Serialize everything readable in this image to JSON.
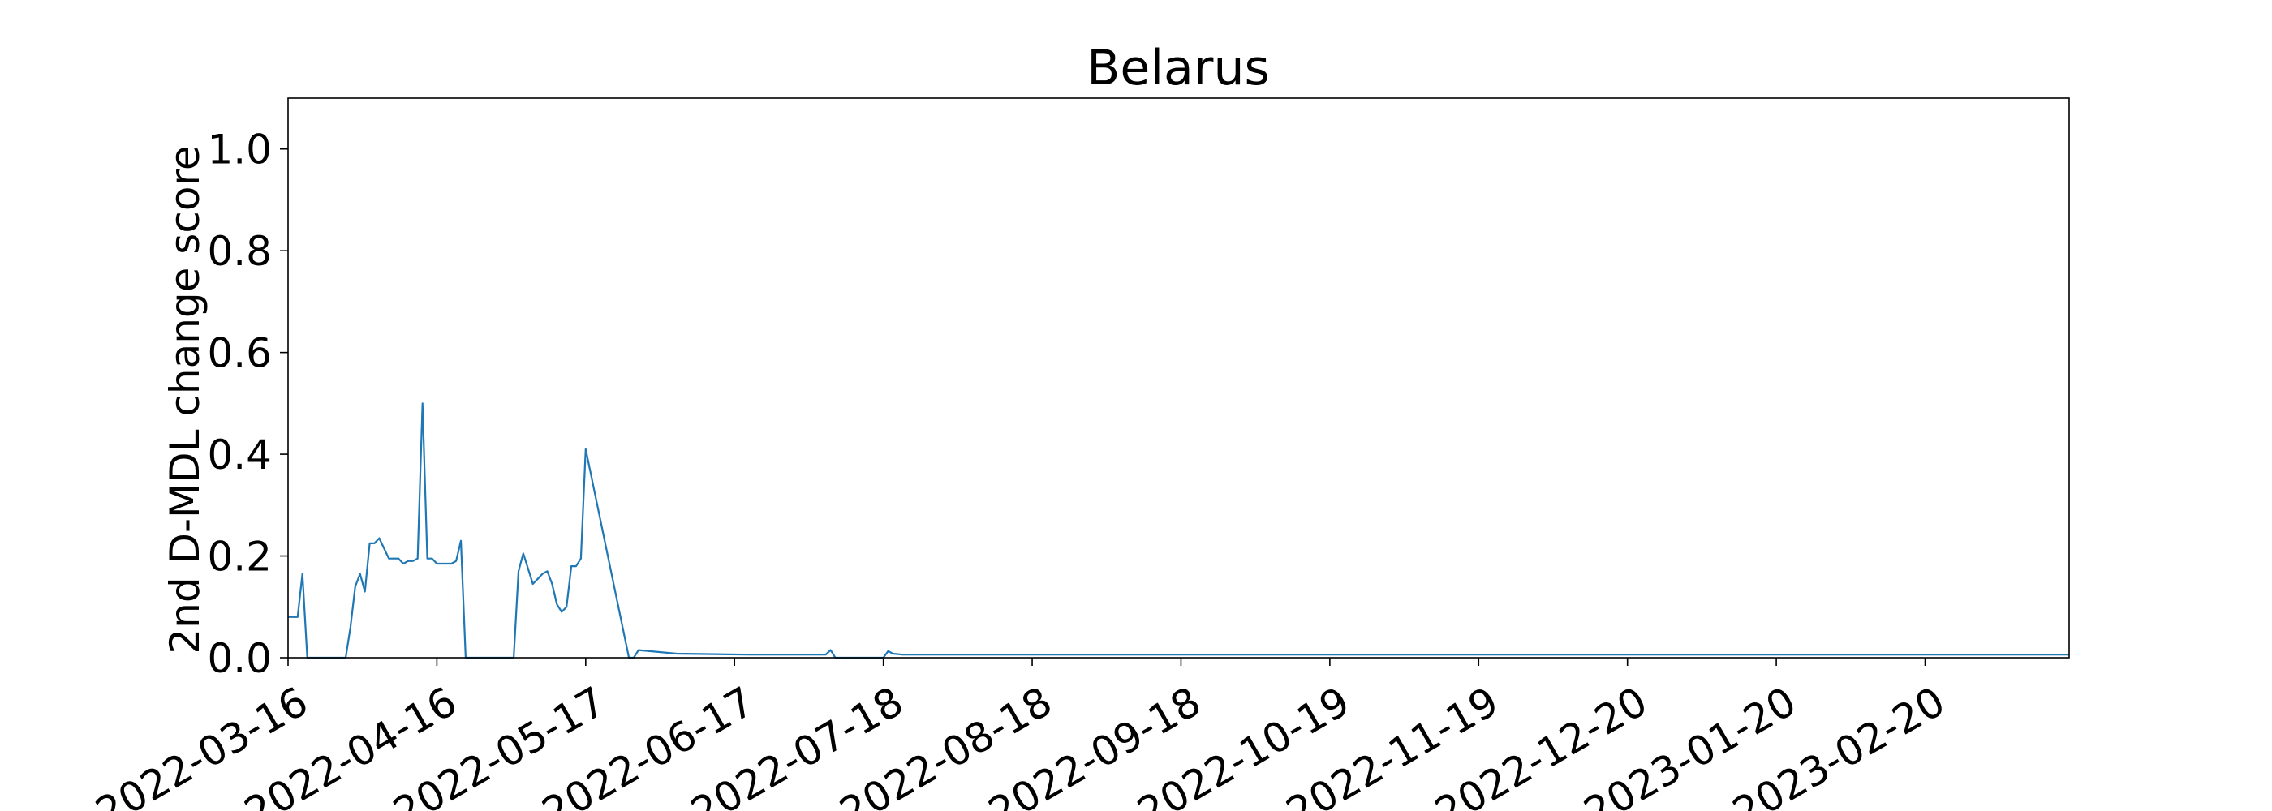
{
  "chart_data": {
    "type": "line",
    "title": "Belarus",
    "xlabel": "",
    "ylabel": "2nd D-MDL change score",
    "grid": false,
    "legend": "none",
    "line_color": "#1f77b4",
    "xlim": [
      "2022-03-16",
      "2023-03-22"
    ],
    "ylim": [
      0,
      1.1
    ],
    "x_ticks": [
      "2022-03-16",
      "2022-04-16",
      "2022-05-17",
      "2022-06-17",
      "2022-07-18",
      "2022-08-18",
      "2022-09-18",
      "2022-10-19",
      "2022-11-19",
      "2022-12-20",
      "2023-01-20",
      "2023-02-20"
    ],
    "y_ticks": [
      "0.0",
      "0.2",
      "0.4",
      "0.6",
      "0.8",
      "1.0"
    ],
    "series": [
      {
        "x": [
          "2022-03-16",
          "2022-03-17",
          "2022-03-18",
          "2022-03-19",
          "2022-03-20",
          "2022-03-28",
          "2022-03-29",
          "2022-03-30",
          "2022-03-31",
          "2022-04-01",
          "2022-04-02",
          "2022-04-03",
          "2022-04-04",
          "2022-04-05",
          "2022-04-06",
          "2022-04-07",
          "2022-04-08",
          "2022-04-09",
          "2022-04-10",
          "2022-04-11",
          "2022-04-12",
          "2022-04-13",
          "2022-04-14",
          "2022-04-15",
          "2022-04-16",
          "2022-04-17",
          "2022-04-18",
          "2022-04-19",
          "2022-04-20",
          "2022-04-21",
          "2022-04-22",
          "2022-04-23",
          "2022-04-24",
          "2022-04-25",
          "2022-05-01",
          "2022-05-02",
          "2022-05-03",
          "2022-05-04",
          "2022-05-05",
          "2022-05-06",
          "2022-05-07",
          "2022-05-08",
          "2022-05-09",
          "2022-05-10",
          "2022-05-11",
          "2022-05-12",
          "2022-05-13",
          "2022-05-14",
          "2022-05-15",
          "2022-05-16",
          "2022-05-17",
          "2022-05-26",
          "2022-05-27",
          "2022-05-28",
          "2022-06-05",
          "2022-06-20",
          "2022-07-06",
          "2022-07-07",
          "2022-07-08",
          "2022-07-18",
          "2022-07-19",
          "2022-07-20",
          "2022-07-22",
          "2022-08-01",
          "2022-09-01",
          "2022-10-01",
          "2022-11-01",
          "2022-12-01",
          "2023-01-01",
          "2023-02-01",
          "2023-03-01",
          "2023-03-22"
        ],
        "values": [
          0.08,
          0.08,
          0.08,
          0.165,
          0.0,
          0.0,
          0.06,
          0.14,
          0.165,
          0.13,
          0.225,
          0.225,
          0.235,
          0.215,
          0.195,
          0.195,
          0.195,
          0.185,
          0.19,
          0.19,
          0.195,
          0.5,
          0.195,
          0.195,
          0.185,
          0.185,
          0.185,
          0.185,
          0.19,
          0.23,
          0.0,
          0.0,
          0.0,
          0.0,
          0.0,
          0.0,
          0.17,
          0.205,
          0.175,
          0.145,
          0.155,
          0.165,
          0.17,
          0.145,
          0.105,
          0.09,
          0.1,
          0.18,
          0.18,
          0.195,
          0.41,
          0.0,
          0.0,
          0.015,
          0.008,
          0.006,
          0.006,
          0.015,
          0.0,
          0.0,
          0.013,
          0.008,
          0.006,
          0.006,
          0.006,
          0.006,
          0.006,
          0.006,
          0.006,
          0.006,
          0.006,
          0.006
        ]
      }
    ]
  }
}
